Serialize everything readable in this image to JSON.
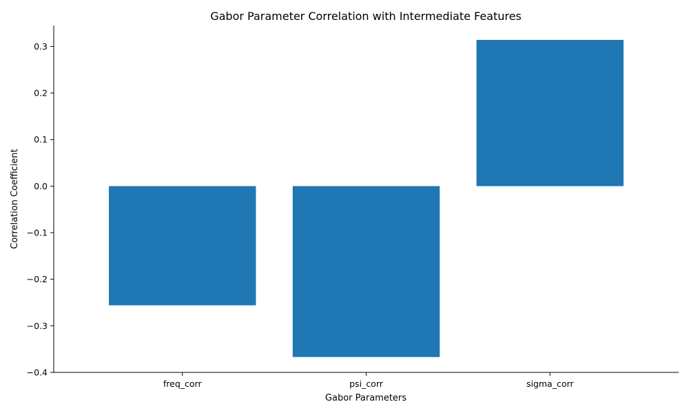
{
  "chart_data": {
    "type": "bar",
    "title": "Gabor Parameter Correlation with Intermediate Features",
    "xlabel": "Gabor Parameters",
    "ylabel": "Correlation Coefficient",
    "categories": [
      "freq_corr",
      "psi_corr",
      "sigma_corr"
    ],
    "values": [
      -0.256,
      -0.367,
      0.314
    ],
    "ylim": [
      -0.4,
      0.345
    ],
    "yticks": [
      -0.4,
      -0.3,
      -0.2,
      -0.1,
      0.0,
      0.1,
      0.2,
      0.3
    ],
    "ytick_labels": [
      "−0.4",
      "−0.3",
      "−0.2",
      "−0.1",
      "0.0",
      "0.1",
      "0.2",
      "0.3"
    ],
    "bar_color": "#1f77b4",
    "grid": false,
    "legend": "none"
  }
}
